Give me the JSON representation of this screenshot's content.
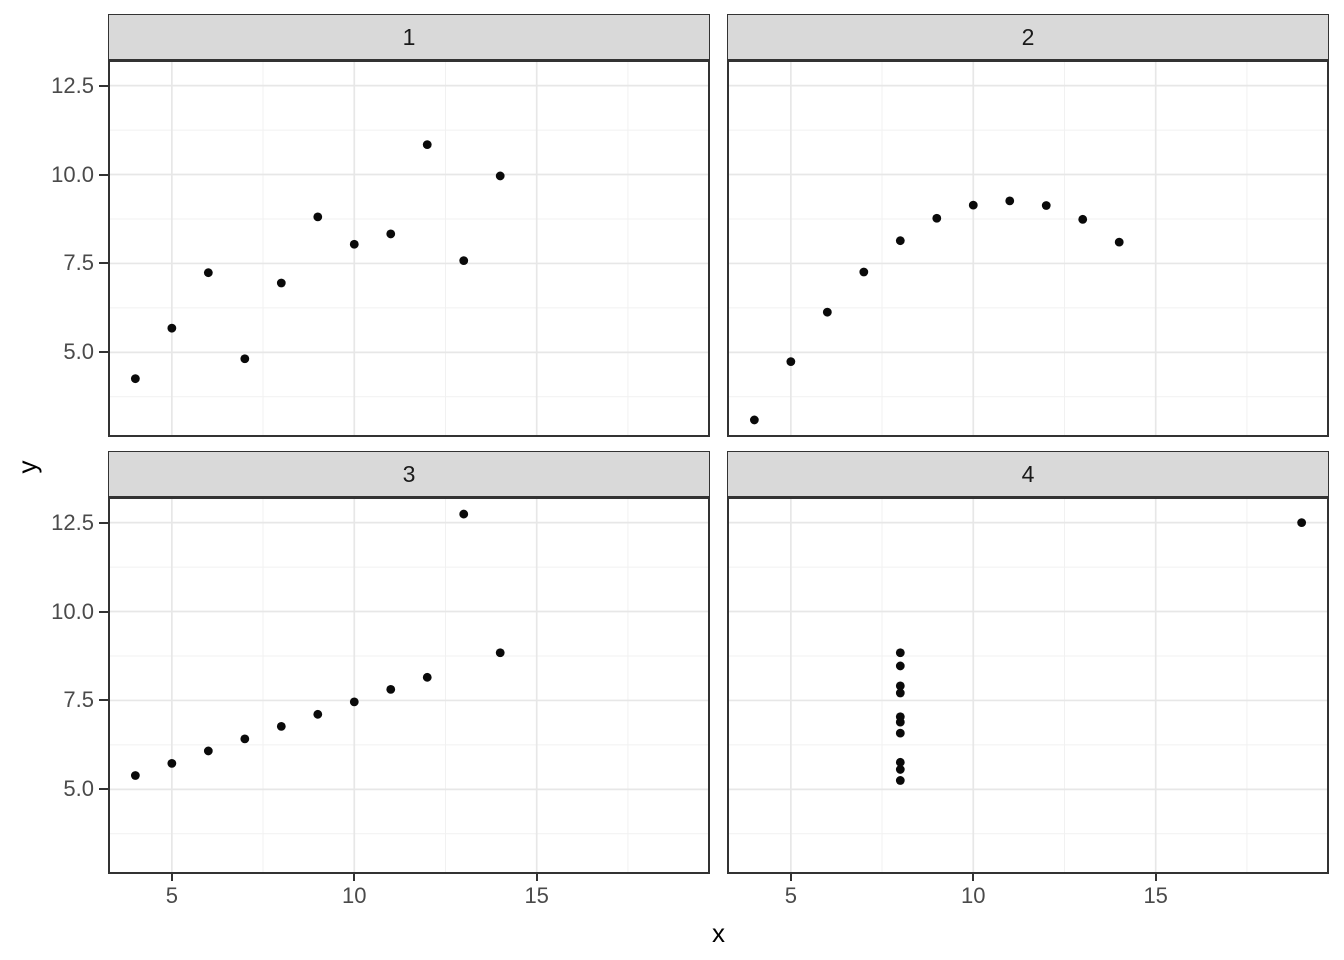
{
  "figure": {
    "background": "#ffffff",
    "x_axis_title": "x",
    "y_axis_title": "y",
    "facet_labels": [
      "1",
      "2",
      "3",
      "4"
    ],
    "axis": {
      "x_domain": [
        3.25,
        19.75
      ],
      "y_domain": [
        2.62,
        13.22
      ],
      "x_major_ticks": [
        5,
        10,
        15
      ],
      "x_tick_labels": [
        "5",
        "10",
        "15"
      ],
      "x_minor_ticks": [
        7.5,
        12.5,
        17.5
      ],
      "y_major_ticks": [
        5.0,
        7.5,
        10.0,
        12.5
      ],
      "y_tick_labels": [
        "5.0",
        "7.5",
        "10.0",
        "12.5"
      ],
      "y_minor_ticks": [
        3.75,
        6.25,
        8.75,
        11.25
      ],
      "grid": true,
      "legend": "none"
    },
    "style": {
      "strip_fill": "#d9d9d9",
      "strip_border": "#333333",
      "panel_border": "#333333",
      "grid_major_color": "#e7e7e7",
      "grid_minor_color": "#f1f1f1",
      "tick_color": "#333333",
      "tick_label_color": "#4a4a4a",
      "axis_title_color": "#000000",
      "point_color": "#0a0a0a",
      "point_radius": 4.4
    }
  },
  "chart_data": [
    {
      "type": "scatter",
      "facet_label": "1",
      "x": [
        4,
        5,
        6,
        7,
        8,
        9,
        10,
        11,
        12,
        13,
        14
      ],
      "y": [
        4.26,
        5.68,
        7.24,
        4.82,
        6.95,
        8.81,
        8.04,
        8.33,
        10.84,
        7.58,
        9.96
      ]
    },
    {
      "type": "scatter",
      "facet_label": "2",
      "x": [
        4,
        5,
        6,
        7,
        8,
        9,
        10,
        11,
        12,
        13,
        14
      ],
      "y": [
        3.1,
        4.74,
        6.13,
        7.26,
        8.14,
        8.77,
        9.14,
        9.26,
        9.13,
        8.74,
        8.1
      ]
    },
    {
      "type": "scatter",
      "facet_label": "3",
      "x": [
        4,
        5,
        6,
        7,
        8,
        9,
        10,
        11,
        12,
        13,
        14
      ],
      "y": [
        5.39,
        5.73,
        6.08,
        6.42,
        6.77,
        7.11,
        7.46,
        7.81,
        8.15,
        12.74,
        8.84
      ]
    },
    {
      "type": "scatter",
      "facet_label": "4",
      "x": [
        8,
        8,
        8,
        8,
        8,
        8,
        8,
        8,
        8,
        8,
        19
      ],
      "y": [
        5.25,
        5.56,
        5.76,
        6.58,
        6.89,
        7.04,
        7.71,
        7.91,
        8.47,
        8.84,
        12.5
      ]
    }
  ]
}
